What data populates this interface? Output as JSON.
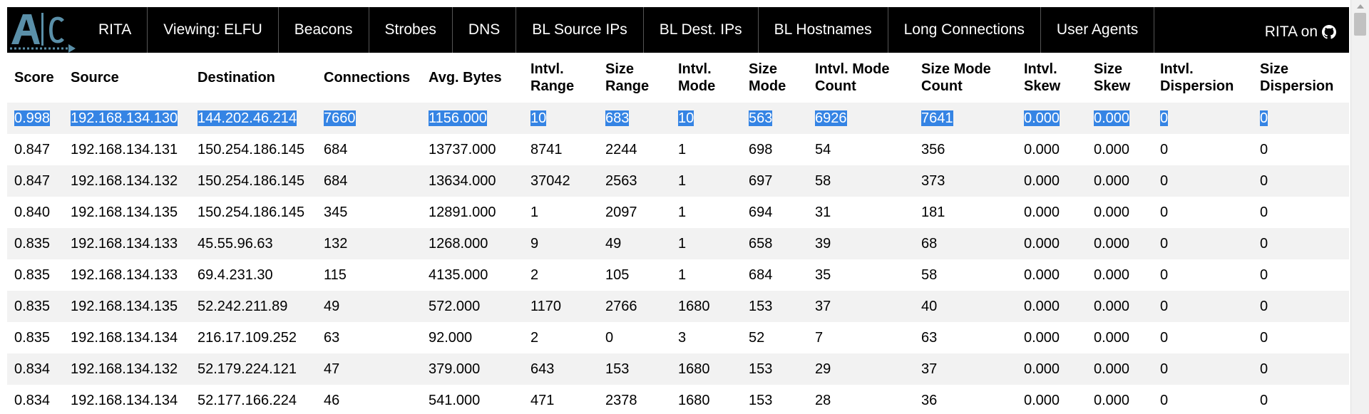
{
  "nav": {
    "logo_text": "AC",
    "items": [
      "RITA",
      "Viewing: ELFU",
      "Beacons",
      "Strobes",
      "DNS",
      "BL Source IPs",
      "BL Dest. IPs",
      "BL Hostnames",
      "Long Connections",
      "User Agents"
    ],
    "github_label": "RITA on",
    "github_icon": "github-icon"
  },
  "table": {
    "headers": [
      "Score",
      "Source",
      "Destination",
      "Connections",
      "Avg. Bytes",
      "Intvl. Range",
      "Size Range",
      "Intvl. Mode",
      "Size Mode",
      "Intvl. Mode Count",
      "Size Mode Count",
      "Intvl. Skew",
      "Size Skew",
      "Intvl. Dispersion",
      "Size Dispersion"
    ],
    "rows": [
      [
        "0.998",
        "192.168.134.130",
        "144.202.46.214",
        "7660",
        "1156.000",
        "10",
        "683",
        "10",
        "563",
        "6926",
        "7641",
        "0.000",
        "0.000",
        "0",
        "0"
      ],
      [
        "0.847",
        "192.168.134.131",
        "150.254.186.145",
        "684",
        "13737.000",
        "8741",
        "2244",
        "1",
        "698",
        "54",
        "356",
        "0.000",
        "0.000",
        "0",
        "0"
      ],
      [
        "0.847",
        "192.168.134.132",
        "150.254.186.145",
        "684",
        "13634.000",
        "37042",
        "2563",
        "1",
        "697",
        "58",
        "373",
        "0.000",
        "0.000",
        "0",
        "0"
      ],
      [
        "0.840",
        "192.168.134.135",
        "150.254.186.145",
        "345",
        "12891.000",
        "1",
        "2097",
        "1",
        "694",
        "31",
        "181",
        "0.000",
        "0.000",
        "0",
        "0"
      ],
      [
        "0.835",
        "192.168.134.133",
        "45.55.96.63",
        "132",
        "1268.000",
        "9",
        "49",
        "1",
        "658",
        "39",
        "68",
        "0.000",
        "0.000",
        "0",
        "0"
      ],
      [
        "0.835",
        "192.168.134.133",
        "69.4.231.30",
        "115",
        "4135.000",
        "2",
        "105",
        "1",
        "684",
        "35",
        "58",
        "0.000",
        "0.000",
        "0",
        "0"
      ],
      [
        "0.835",
        "192.168.134.135",
        "52.242.211.89",
        "49",
        "572.000",
        "1170",
        "2766",
        "1680",
        "153",
        "37",
        "40",
        "0.000",
        "0.000",
        "0",
        "0"
      ],
      [
        "0.835",
        "192.168.134.134",
        "216.17.109.252",
        "63",
        "92.000",
        "2",
        "0",
        "3",
        "52",
        "7",
        "63",
        "0.000",
        "0.000",
        "0",
        "0"
      ],
      [
        "0.834",
        "192.168.134.132",
        "52.179.224.121",
        "47",
        "379.000",
        "643",
        "153",
        "1680",
        "153",
        "29",
        "37",
        "0.000",
        "0.000",
        "0",
        "0"
      ],
      [
        "0.834",
        "192.168.134.134",
        "52.177.166.224",
        "46",
        "541.000",
        "471",
        "2378",
        "1680",
        "153",
        "28",
        "36",
        "0.000",
        "0.000",
        "0",
        "0"
      ]
    ]
  },
  "colors": {
    "nav_bg": "#000000",
    "selection": "#3584e4",
    "row_stripe": "#f2f2f2",
    "logo": "#5a8fa8"
  }
}
